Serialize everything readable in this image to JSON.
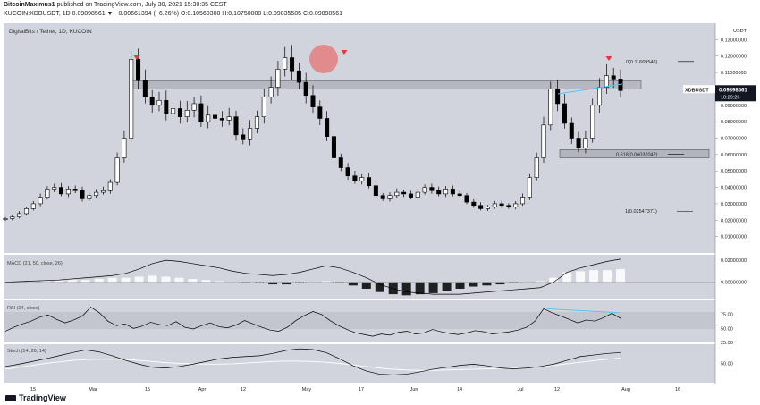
{
  "header": {
    "line1_user": "BitcoinMaximus1",
    "line1_rest": "published on TradingView.com, July 30, 2021 15:30:35 CEST",
    "line2": "KUCOIN:XDBUSDT, 1D 0.09898561 ▼ −0.00661394 (−6.26%) O:0.10560300 H:0.10750000 L:0.09835585 C:0.09898561"
  },
  "title": "DigitalBits / Tether, 1D, KUCOIN",
  "price_badge": {
    "symbol": "XDBUSDT",
    "price": "0.09898561",
    "countdown": "10:29:26"
  },
  "axis_unit": "USDT",
  "logo": "TradingView",
  "colors": {
    "background": "#d1d4dc",
    "candle": "#000000",
    "resistance_box": "#b2b5be",
    "fib_line": "#000000",
    "highlight_circle": "#e57373",
    "arrow": "#e53935",
    "trendline": "#4fc3f7",
    "histogram_pos": "#ffffff",
    "histogram_neg": "#000000"
  },
  "chart_data": [
    {
      "type": "candlestick",
      "name": "price",
      "ylim": [
        0.0,
        0.14
      ],
      "y_ticks": [
        "0.13000000",
        "0.12000000",
        "0.11000000",
        "0.10000000",
        "0.09000000",
        "0.08000000",
        "0.07000000",
        "0.06000000",
        "0.05000000",
        "0.04000000",
        "0.03000000",
        "0.02000000",
        "0.01000000"
      ],
      "x_ticks": [
        "15",
        "Mar",
        "15",
        "Apr",
        "12",
        "May",
        "17",
        "Jun",
        "14",
        "Jul",
        "12",
        "Aug",
        "16"
      ],
      "close_series": [
        0.021,
        0.022,
        0.024,
        0.027,
        0.03,
        0.034,
        0.039,
        0.04,
        0.036,
        0.039,
        0.038,
        0.033,
        0.035,
        0.037,
        0.038,
        0.043,
        0.058,
        0.07,
        0.118,
        0.105,
        0.095,
        0.09,
        0.093,
        0.085,
        0.088,
        0.083,
        0.087,
        0.091,
        0.08,
        0.084,
        0.082,
        0.081,
        0.083,
        0.072,
        0.069,
        0.076,
        0.083,
        0.095,
        0.101,
        0.112,
        0.119,
        0.111,
        0.104,
        0.096,
        0.089,
        0.082,
        0.071,
        0.058,
        0.052,
        0.047,
        0.044,
        0.046,
        0.041,
        0.035,
        0.033,
        0.035,
        0.037,
        0.036,
        0.034,
        0.037,
        0.04,
        0.038,
        0.036,
        0.039,
        0.036,
        0.035,
        0.031,
        0.029,
        0.027,
        0.028,
        0.03,
        0.029,
        0.028,
        0.03,
        0.034,
        0.046,
        0.058,
        0.078,
        0.1,
        0.091,
        0.079,
        0.07,
        0.064,
        0.07,
        0.09,
        0.101,
        0.108,
        0.106,
        0.099
      ],
      "annotations": {
        "fib_0": {
          "label": "0(0.11669546)",
          "value": 0.11669546
        },
        "fib_0618": {
          "label": "0.618(0.06032042)",
          "value": 0.06032042
        },
        "fib_1": {
          "label": "1(0.02547371)",
          "value": 0.02547371
        },
        "resistance_zone": [
          0.1,
          0.105
        ],
        "support_zone": [
          0.058,
          0.063
        ],
        "last_price": "0.09898561"
      }
    },
    {
      "type": "line",
      "name": "MACD",
      "label": "MACD (21, 50, close, 26)",
      "y_ticks": [
        "0.02000000",
        "0.00000000"
      ],
      "ylim": [
        -0.015,
        0.025
      ],
      "macd": [
        0.0,
        0.0005,
        0.001,
        0.0015,
        0.002,
        0.003,
        0.004,
        0.005,
        0.006,
        0.008,
        0.012,
        0.017,
        0.02,
        0.019,
        0.017,
        0.015,
        0.013,
        0.01,
        0.008,
        0.007,
        0.006,
        0.007,
        0.009,
        0.012,
        0.015,
        0.013,
        0.009,
        0.004,
        -0.002,
        -0.006,
        -0.009,
        -0.01,
        -0.011,
        -0.011,
        -0.011,
        -0.01,
        -0.009,
        -0.008,
        -0.007,
        -0.006,
        -0.005,
        0.0,
        0.009,
        0.013,
        0.016,
        0.019,
        0.021
      ],
      "histogram": [
        0.0,
        0.0005,
        0.001,
        0.001,
        0.0015,
        0.002,
        0.002,
        0.003,
        0.004,
        0.004,
        0.005,
        0.006,
        0.005,
        0.004,
        0.003,
        0.002,
        0.001,
        0.0,
        -0.001,
        -0.001,
        -0.002,
        -0.002,
        -0.001,
        0.0,
        0.001,
        -0.001,
        -0.003,
        -0.006,
        -0.009,
        -0.011,
        -0.012,
        -0.011,
        -0.01,
        -0.008,
        -0.006,
        -0.004,
        -0.003,
        -0.002,
        -0.001,
        0.0,
        0.001,
        0.004,
        0.009,
        0.01,
        0.011,
        0.011,
        0.012
      ]
    },
    {
      "type": "line",
      "name": "RSI",
      "label": "RSI (14, close)",
      "y_ticks": [
        "75.00",
        "50.00",
        "25.00"
      ],
      "ylim": [
        25,
        100
      ],
      "values": [
        45,
        52,
        58,
        63,
        70,
        74,
        66,
        60,
        65,
        72,
        88,
        78,
        63,
        55,
        58,
        50,
        54,
        61,
        57,
        55,
        62,
        52,
        49,
        55,
        60,
        53,
        51,
        56,
        64,
        58,
        52,
        47,
        45,
        52,
        64,
        73,
        80,
        75,
        64,
        55,
        48,
        42,
        39,
        36,
        40,
        38,
        43,
        45,
        40,
        42,
        48,
        44,
        41,
        39,
        42,
        46,
        44,
        40,
        42,
        44,
        47,
        52,
        63,
        85,
        78,
        72,
        66,
        60,
        65,
        63,
        69,
        77,
        68
      ]
    },
    {
      "type": "line",
      "name": "Stoch",
      "label": "Stoch (14, 26, 14)",
      "y_ticks": [
        "50.00"
      ],
      "ylim": [
        0,
        100
      ],
      "values": [
        42,
        48,
        55,
        62,
        70,
        78,
        85,
        80,
        70,
        58,
        48,
        40,
        38,
        42,
        48,
        55,
        62,
        66,
        68,
        70,
        76,
        84,
        88,
        86,
        78,
        62,
        44,
        30,
        22,
        20,
        22,
        28,
        35,
        40,
        45,
        48,
        44,
        38,
        36,
        38,
        42,
        48,
        58,
        68,
        72,
        76,
        78
      ],
      "signal": [
        35,
        40,
        45,
        50,
        54,
        58,
        60,
        61,
        61,
        60,
        58,
        55,
        52,
        50,
        49,
        48,
        48,
        49,
        51,
        53,
        55,
        56,
        56,
        55,
        53,
        50,
        46,
        42,
        38,
        35,
        33,
        32,
        32,
        33,
        34,
        35,
        36,
        37,
        38,
        40,
        42,
        45,
        49,
        53,
        57,
        61,
        64
      ]
    }
  ]
}
